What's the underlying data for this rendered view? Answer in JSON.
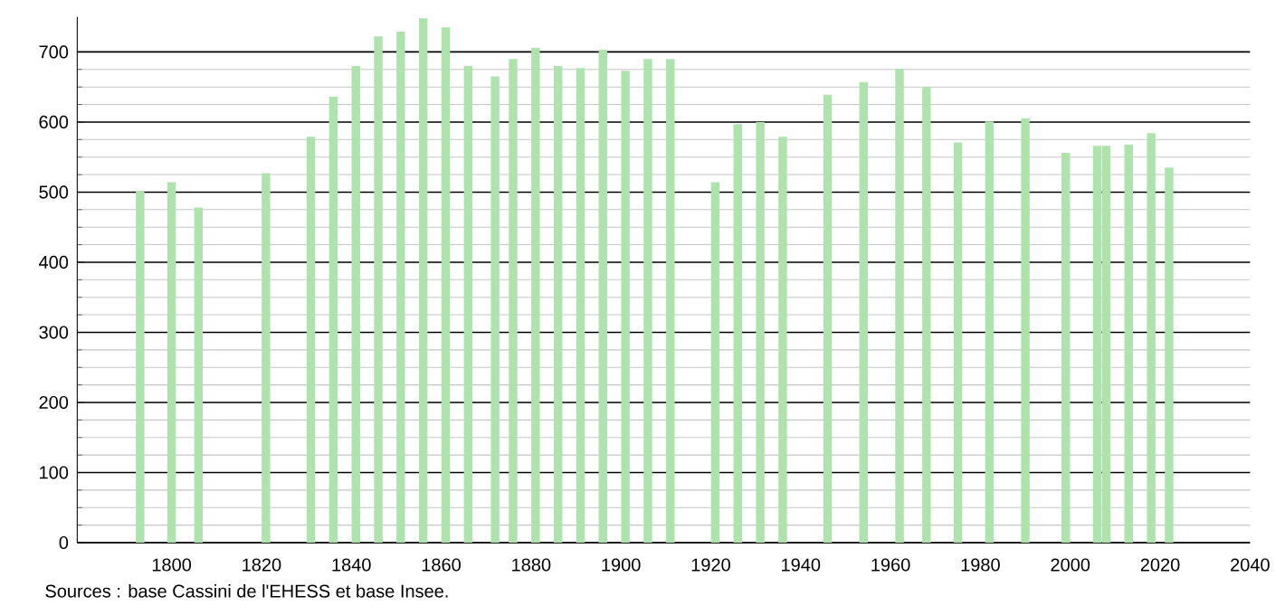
{
  "chart_data": {
    "type": "bar",
    "x": [
      1793,
      1800,
      1806,
      1821,
      1831,
      1836,
      1841,
      1846,
      1851,
      1856,
      1861,
      1866,
      1872,
      1876,
      1881,
      1886,
      1891,
      1896,
      1901,
      1906,
      1911,
      1921,
      1926,
      1931,
      1936,
      1946,
      1954,
      1962,
      1968,
      1975,
      1982,
      1990,
      1999,
      2006,
      2008,
      2013,
      2018,
      2022
    ],
    "values": [
      502,
      514,
      478,
      527,
      579,
      636,
      680,
      722,
      729,
      748,
      735,
      680,
      665,
      690,
      706,
      680,
      677,
      703,
      673,
      690,
      690,
      514,
      597,
      600,
      579,
      639,
      657,
      676,
      650,
      571,
      601,
      605,
      556,
      566,
      566,
      568,
      584,
      535
    ],
    "color": "#aee3ae",
    "xlim": [
      1779,
      2040
    ],
    "ylim": [
      0,
      750
    ],
    "xticks": [
      1800,
      1820,
      1840,
      1860,
      1880,
      1900,
      1920,
      1940,
      1960,
      1980,
      2000,
      2020,
      2040
    ],
    "yticks": [
      0,
      100,
      200,
      300,
      400,
      500,
      600,
      700
    ],
    "grid": "y",
    "annotations": [
      "Sources : base Cassini de l'EHESS et base Insee."
    ]
  }
}
